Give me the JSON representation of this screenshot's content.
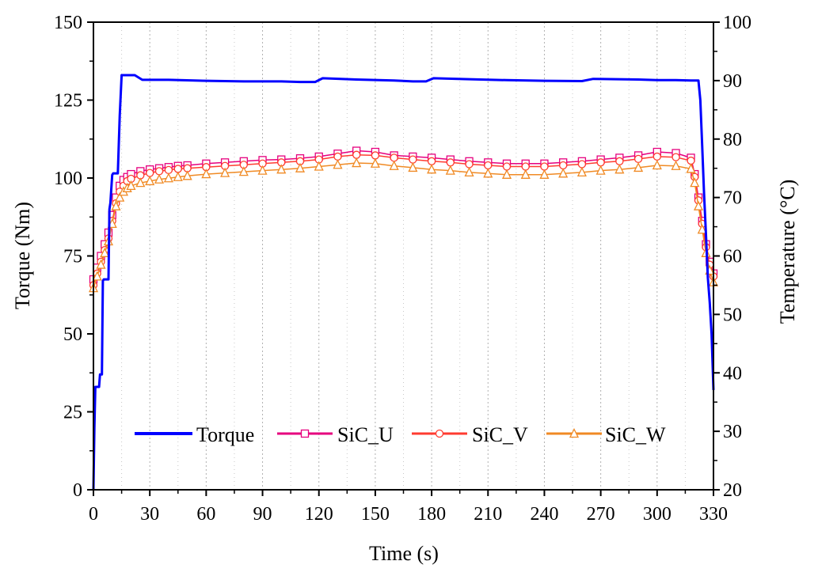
{
  "chart_data": {
    "type": "line",
    "title": "",
    "xlabel": "Time (s)",
    "ylabel_left": "Torque (Nm)",
    "ylabel_right": "Temperature (°C)",
    "xlim": [
      0,
      330
    ],
    "ylim_left": [
      0,
      150
    ],
    "ylim_right": [
      20,
      100
    ],
    "x_ticks": [
      "0",
      "30",
      "60",
      "90",
      "120",
      "150",
      "180",
      "210",
      "240",
      "270",
      "300",
      "330"
    ],
    "y_left_ticks": [
      "0",
      "25",
      "50",
      "75",
      "100",
      "125",
      "150"
    ],
    "y_right_ticks": [
      "20",
      "30",
      "40",
      "50",
      "60",
      "70",
      "80",
      "90",
      "100"
    ],
    "grid": true,
    "legend_position": "bottom",
    "series": [
      {
        "name": "Torque",
        "axis": "left",
        "color": "#0000ff",
        "marker": "none",
        "x": [
          0,
          0.5,
          1,
          3,
          3.5,
          4.5,
          5,
          5.5,
          6,
          8,
          8.5,
          9,
          10,
          10.5,
          11,
          12,
          13,
          14,
          15,
          20,
          22,
          26,
          40,
          60,
          80,
          100,
          110,
          118,
          122,
          140,
          160,
          170,
          177,
          181,
          200,
          220,
          240,
          260,
          266,
          290,
          300,
          310,
          318,
          322,
          323,
          324,
          325,
          326,
          326.5,
          327,
          328,
          329,
          330
        ],
        "y": [
          0,
          20,
          33,
          33,
          37,
          37,
          67,
          67.5,
          67.5,
          67.5,
          90,
          92,
          101,
          101.5,
          101.5,
          101.5,
          101.5,
          120,
          133,
          133,
          133,
          131.5,
          131.5,
          131.2,
          131,
          131,
          130.8,
          130.8,
          132,
          131.6,
          131.3,
          131,
          131,
          132,
          131.7,
          131.4,
          131.2,
          131.1,
          131.8,
          131.6,
          131.4,
          131.4,
          131.3,
          131.3,
          125,
          110,
          95,
          82,
          75,
          68,
          60,
          50,
          32
        ]
      },
      {
        "name": "SiC_U",
        "axis": "right",
        "color": "#e6007e",
        "marker": "square",
        "x": [
          0,
          2,
          4,
          6,
          8,
          10,
          12,
          14,
          16,
          18,
          20,
          25,
          30,
          35,
          40,
          45,
          50,
          60,
          70,
          80,
          90,
          100,
          110,
          120,
          130,
          140,
          150,
          160,
          170,
          180,
          190,
          200,
          210,
          220,
          230,
          240,
          250,
          260,
          270,
          280,
          290,
          300,
          310,
          318,
          320,
          322,
          324,
          326,
          328,
          330
        ],
        "y": [
          56,
          58,
          60,
          62,
          64,
          67,
          70,
          72,
          73,
          73.5,
          74,
          74.5,
          74.8,
          75,
          75.2,
          75.4,
          75.5,
          75.8,
          76,
          76.2,
          76.4,
          76.5,
          76.7,
          77,
          77.5,
          78,
          77.8,
          77.2,
          77,
          76.8,
          76.5,
          76.2,
          76,
          75.8,
          75.8,
          75.8,
          76,
          76.2,
          76.5,
          76.8,
          77.2,
          77.8,
          77.6,
          76.8,
          74,
          70,
          66,
          62,
          59,
          57
        ]
      },
      {
        "name": "SiC_V",
        "axis": "right",
        "color": "#ff3b30",
        "marker": "circle",
        "x": [
          0,
          2,
          4,
          6,
          8,
          10,
          12,
          14,
          16,
          18,
          20,
          25,
          30,
          35,
          40,
          45,
          50,
          60,
          70,
          80,
          90,
          100,
          110,
          120,
          130,
          140,
          150,
          160,
          170,
          180,
          190,
          200,
          210,
          220,
          230,
          240,
          250,
          260,
          270,
          280,
          290,
          300,
          310,
          318,
          320,
          322,
          324,
          326,
          328,
          330
        ],
        "y": [
          55,
          57,
          59,
          61,
          63,
          66,
          69,
          71,
          72,
          72.8,
          73.2,
          73.8,
          74.2,
          74.5,
          74.7,
          74.9,
          75,
          75.2,
          75.4,
          75.6,
          75.8,
          76,
          76.2,
          76.5,
          77,
          77.3,
          77.2,
          76.8,
          76.5,
          76.2,
          76,
          75.7,
          75.5,
          75.3,
          75.3,
          75.3,
          75.5,
          75.7,
          76,
          76.2,
          76.6,
          77,
          76.9,
          76.3,
          73.5,
          69.5,
          65.5,
          61.5,
          58.5,
          56.5
        ]
      },
      {
        "name": "SiC_W",
        "axis": "right",
        "color": "#f08a24",
        "marker": "triangle",
        "x": [
          0,
          2,
          4,
          6,
          8,
          10,
          12,
          14,
          16,
          18,
          20,
          25,
          30,
          35,
          40,
          45,
          50,
          60,
          70,
          80,
          90,
          100,
          110,
          120,
          130,
          140,
          150,
          160,
          170,
          180,
          190,
          200,
          210,
          220,
          230,
          240,
          250,
          260,
          270,
          280,
          290,
          300,
          310,
          318,
          320,
          322,
          324,
          326,
          328,
          330
        ],
        "y": [
          54.5,
          56.5,
          58.5,
          60.5,
          62.5,
          65.5,
          68.5,
          70,
          71,
          71.6,
          72,
          72.5,
          72.8,
          73.1,
          73.3,
          73.5,
          73.7,
          74,
          74.2,
          74.4,
          74.6,
          74.8,
          75,
          75.3,
          75.6,
          75.9,
          75.8,
          75.4,
          75.1,
          74.8,
          74.6,
          74.3,
          74.1,
          73.9,
          73.9,
          73.9,
          74.1,
          74.3,
          74.6,
          74.8,
          75.1,
          75.5,
          75.4,
          74.9,
          72.5,
          68.5,
          64.5,
          60.5,
          57.5,
          55.5
        ]
      }
    ]
  }
}
